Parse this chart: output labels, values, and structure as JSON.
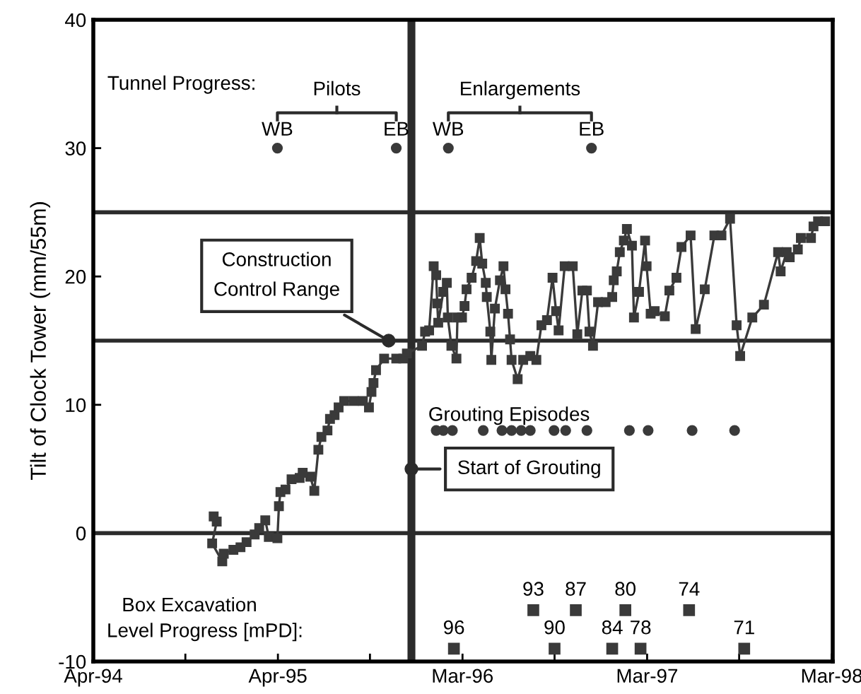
{
  "chart_data": {
    "type": "line",
    "ylabel": "Tilt of Clock Tower (mm/55m)",
    "xlim": [
      "1994-04-01",
      "1998-04-02"
    ],
    "ylim": [
      -10,
      40
    ],
    "xticks": [
      {
        "value": "1994-04-01",
        "label": "Apr-94"
      },
      {
        "value": "1994-09-30",
        "label": null
      },
      {
        "value": "1995-04-01",
        "label": "Apr-95"
      },
      {
        "value": "1995-09-30",
        "label": null
      },
      {
        "value": "1996-03-31",
        "label": "Mar-96"
      },
      {
        "value": "1996-09-29",
        "label": null
      },
      {
        "value": "1997-03-31",
        "label": "Mar-97"
      },
      {
        "value": "1997-09-29",
        "label": null
      },
      {
        "value": "1998-03-31",
        "label": "Mar-98"
      }
    ],
    "yticks": [
      -10,
      0,
      10,
      20,
      30,
      40
    ],
    "series": [
      {
        "marker": "square",
        "color": "#3a3a3a",
        "x": [
          "1994-11-25",
          "1994-12-01",
          "1994-11-22",
          "1994-12-12",
          "1994-12-15",
          "1995-01-03",
          "1995-01-17",
          "1995-01-29",
          "1995-02-14",
          "1995-02-23",
          "1995-03-07",
          "1995-03-14",
          "1995-03-31",
          "1995-04-03",
          "1995-04-06",
          "1995-04-16",
          "1995-04-28",
          "1995-05-14",
          "1995-05-20",
          "1995-06-04",
          "1995-06-12",
          "1995-06-20",
          "1995-06-26",
          "1995-07-08",
          "1995-07-13",
          "1995-07-22",
          "1995-07-30",
          "1995-08-10",
          "1995-08-29",
          "1995-09-16",
          "1995-09-28",
          "1995-10-03",
          "1995-10-07",
          "1995-10-12",
          "1995-10-28",
          "1995-11-21",
          "1995-12-05",
          "1995-12-12",
          "1996-01-11",
          "1996-01-17",
          "1996-01-25",
          "1996-02-03",
          "1996-02-08",
          "1996-02-10",
          "1996-02-12",
          "1996-02-22",
          "1996-02-29",
          "1996-03-02",
          "1996-03-09",
          "1996-03-19",
          "1996-03-21",
          "1996-03-30",
          "1996-04-04",
          "1996-04-08",
          "1996-04-18",
          "1996-04-27",
          "1996-05-04",
          "1996-05-09",
          "1996-05-16",
          "1996-05-18",
          "1996-05-25",
          "1996-05-27",
          "1996-06-03",
          "1996-06-13",
          "1996-06-20",
          "1996-06-24",
          "1996-06-29",
          "1996-07-03",
          "1996-07-06",
          "1996-07-18",
          "1996-07-29",
          "1996-08-12",
          "1996-08-24",
          "1996-09-03",
          "1996-09-14",
          "1996-09-25",
          "1996-10-02",
          "1996-10-07",
          "1996-10-19",
          "1996-11-04",
          "1996-11-13",
          "1996-11-23",
          "1996-12-02",
          "1996-12-07",
          "1996-12-14",
          "1996-12-24",
          "1997-01-08",
          "1997-01-21",
          "1997-01-24",
          "1997-01-30",
          "1997-02-05",
          "1997-02-13",
          "1997-02-19",
          "1997-03-01",
          "1997-03-05",
          "1997-03-15",
          "1997-03-27",
          "1997-03-30",
          "1997-04-07",
          "1997-04-15",
          "1997-05-05",
          "1997-05-14",
          "1997-05-28",
          "1997-06-07",
          "1997-06-25",
          "1997-07-05",
          "1997-07-23",
          "1997-08-11",
          "1997-08-25",
          "1997-09-11",
          "1997-09-24",
          "1997-10-01",
          "1997-10-25",
          "1997-11-17",
          "1997-12-15",
          "1997-12-20",
          "1998-01-01",
          "1998-01-07",
          "1998-01-23",
          "1998-01-29",
          "1998-02-18",
          "1998-02-23",
          "1998-03-04",
          "1998-03-18"
        ],
        "values": [
          1.3,
          0.9,
          -0.8,
          -2.2,
          -1.6,
          -1.3,
          -1.1,
          -0.7,
          -0.1,
          0.4,
          1.0,
          -0.3,
          -0.4,
          2.1,
          3.2,
          3.4,
          4.2,
          4.3,
          4.7,
          4.4,
          3.3,
          6.5,
          7.5,
          8.0,
          8.9,
          9.2,
          9.8,
          10.3,
          10.3,
          10.3,
          9.8,
          11.0,
          11.7,
          12.7,
          13.6,
          13.6,
          13.6,
          14.0,
          14.6,
          15.7,
          15.8,
          20.8,
          20.1,
          17.9,
          16.4,
          18.8,
          19.5,
          16.8,
          14.6,
          13.6,
          16.8,
          16.8,
          17.7,
          19.0,
          19.9,
          21.2,
          23.0,
          21.0,
          19.5,
          18.4,
          15.7,
          13.5,
          17.5,
          19.7,
          20.8,
          19.0,
          17.1,
          15.1,
          13.5,
          12.0,
          13.5,
          13.8,
          13.5,
          16.2,
          16.6,
          19.9,
          17.3,
          15.8,
          20.8,
          20.8,
          15.5,
          18.9,
          18.9,
          15.7,
          14.6,
          18.0,
          18.0,
          18.4,
          19.7,
          20.4,
          21.9,
          22.8,
          23.7,
          22.4,
          16.8,
          18.8,
          22.8,
          20.8,
          17.1,
          17.3,
          16.9,
          18.9,
          19.9,
          22.3,
          23.2,
          15.9,
          19.0,
          23.2,
          23.2,
          24.5,
          16.2,
          13.8,
          16.8,
          17.8,
          21.9,
          20.4,
          21.9,
          21.5,
          22.1,
          23.0,
          23.0,
          23.9,
          24.3,
          24.3
        ]
      },
      {
        "type": "scatter",
        "marker": "circle",
        "color": "#3a3a3a",
        "x": [
          "1995-03-31",
          "1995-11-21",
          "1996-03-03",
          "1996-12-11"
        ],
        "values": [
          30,
          30,
          30,
          30
        ],
        "value_labels": [
          "WB",
          "EB",
          "WB",
          "EB"
        ]
      },
      {
        "type": "scatter",
        "marker": "circle",
        "color": "#3a3a3a",
        "x": [
          "1996-02-08",
          "1996-02-22",
          "1996-03-11",
          "1996-05-11",
          "1996-06-17",
          "1996-07-06",
          "1996-07-25",
          "1996-08-12",
          "1996-09-28",
          "1996-10-21",
          "1996-12-02",
          "1997-02-24",
          "1997-04-02",
          "1997-06-28",
          "1997-09-20"
        ],
        "values": [
          8,
          8,
          8,
          8,
          8,
          8,
          8,
          8,
          8,
          8,
          8,
          8,
          8,
          8,
          8
        ]
      },
      {
        "type": "scatter",
        "marker": "square",
        "color": "#3a3a3a",
        "x": [
          "1996-03-14",
          "1996-08-18",
          "1996-09-29",
          "1996-11-10",
          "1997-01-21",
          "1997-02-16",
          "1997-03-18",
          "1997-06-22",
          "1997-10-09"
        ],
        "values": [
          -9,
          -6,
          -9,
          -6,
          -9,
          -6,
          -9,
          -6,
          -9
        ]
      }
    ],
    "ref_lines": [
      {
        "axis": "y",
        "value": 0,
        "label": null
      },
      {
        "axis": "y",
        "value": 15,
        "label": null
      },
      {
        "axis": "y",
        "value": 25,
        "label": null
      },
      {
        "axis": "x",
        "value": "1995-12-21",
        "label": null
      }
    ],
    "annotations": [
      "Tunnel Progress:",
      "Pilots",
      "Enlargements",
      "Grouting Episodes",
      "Box Excavation",
      "Level Progress [mPD]:",
      {
        "text": "Construction Control Range",
        "x": "1995-11-06",
        "y": 15
      },
      {
        "text": "Start of Grouting",
        "x": "1995-12-21",
        "y": 5
      },
      {
        "text": "96",
        "x": "1996-03-14",
        "y": -9
      },
      {
        "text": "93",
        "x": "1996-08-18",
        "y": -6
      },
      {
        "text": "90",
        "x": "1996-09-29",
        "y": -9
      },
      {
        "text": "87",
        "x": "1996-11-10",
        "y": -6
      },
      {
        "text": "84",
        "x": "1997-01-21",
        "y": -9
      },
      {
        "text": "80",
        "x": "1997-02-16",
        "y": -6
      },
      {
        "text": "78",
        "x": "1997-03-18",
        "y": -9
      },
      {
        "text": "74",
        "x": "1997-06-22",
        "y": -6
      },
      {
        "text": "71",
        "x": "1997-10-09",
        "y": -9
      }
    ]
  }
}
